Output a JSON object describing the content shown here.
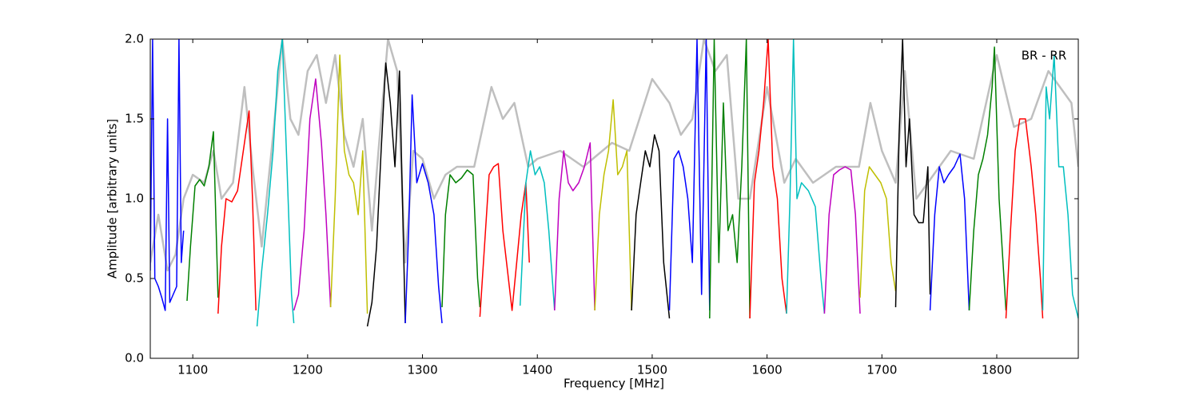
{
  "chart_data": {
    "type": "line",
    "xlabel": "Frequency [MHz]",
    "ylabel": "Amplitude [arbitrary units]",
    "annotation": "BR - RR",
    "xlim": [
      1063,
      1871
    ],
    "ylim": [
      0,
      2
    ],
    "xticks": [
      1100,
      1200,
      1300,
      1400,
      1500,
      1600,
      1700,
      1800
    ],
    "yticks": [
      {
        "value": 0,
        "label": "0.0"
      },
      {
        "value": 0.5,
        "label": "0.5"
      },
      {
        "value": 1,
        "label": "1.0"
      },
      {
        "value": 1.5,
        "label": "1.5"
      },
      {
        "value": 2,
        "label": "2.0"
      }
    ],
    "series": [
      {
        "color": "#bfbfbf",
        "x": [
          1063,
          1070,
          1078,
          1085,
          1092,
          1100,
          1110,
          1118,
          1125,
          1135,
          1145,
          1152,
          1160,
          1170,
          1178,
          1185,
          1192,
          1200,
          1208,
          1216,
          1224,
          1232,
          1240,
          1248,
          1256,
          1264,
          1270,
          1278,
          1285,
          1292,
          1300,
          1310,
          1320,
          1330,
          1345,
          1360,
          1370,
          1380,
          1392,
          1400,
          1420,
          1440,
          1465,
          1480,
          1500,
          1515,
          1525,
          1535,
          1545,
          1555,
          1565,
          1575,
          1585,
          1600,
          1615,
          1625,
          1640,
          1660,
          1680,
          1690,
          1700,
          1712,
          1720,
          1730,
          1740,
          1760,
          1780,
          1800,
          1815,
          1830,
          1845,
          1855,
          1865,
          1871
        ],
        "values": [
          0.6,
          0.9,
          0.55,
          0.65,
          1.0,
          1.15,
          1.1,
          1.3,
          1.0,
          1.1,
          1.7,
          1.2,
          0.7,
          1.4,
          2.0,
          1.5,
          1.4,
          1.8,
          1.9,
          1.6,
          1.9,
          1.4,
          1.2,
          1.5,
          0.8,
          1.5,
          2.0,
          1.8,
          0.6,
          1.3,
          1.25,
          1.0,
          1.15,
          1.2,
          1.2,
          1.7,
          1.5,
          1.6,
          1.2,
          1.25,
          1.3,
          1.2,
          1.35,
          1.3,
          1.75,
          1.6,
          1.4,
          1.5,
          2.0,
          1.8,
          1.9,
          1.0,
          1.0,
          1.7,
          1.1,
          1.25,
          1.1,
          1.2,
          1.2,
          1.6,
          1.3,
          1.1,
          1.8,
          1.0,
          1.1,
          1.3,
          1.25,
          1.9,
          1.45,
          1.5,
          1.8,
          1.7,
          1.6,
          1.2
        ]
      },
      {
        "color": "#0000ff",
        "x": [
          1063,
          1065,
          1067,
          1070,
          1073,
          1076,
          1078,
          1080,
          1083,
          1086,
          1088,
          1090,
          1092
        ],
        "values": [
          0.55,
          2.0,
          0.5,
          0.45,
          0.38,
          0.3,
          1.5,
          0.35,
          0.4,
          0.45,
          2.0,
          0.6,
          0.8
        ]
      },
      {
        "color": "#008000",
        "x": [
          1095,
          1098,
          1102,
          1106,
          1110,
          1114,
          1118,
          1122
        ],
        "values": [
          0.36,
          0.7,
          1.08,
          1.12,
          1.08,
          1.2,
          1.42,
          0.38
        ]
      },
      {
        "color": "#ff0000",
        "x": [
          1122,
          1125,
          1129,
          1134,
          1139,
          1144,
          1149,
          1152,
          1155
        ],
        "values": [
          0.28,
          0.7,
          1.0,
          0.98,
          1.05,
          1.3,
          1.55,
          1.0,
          0.3
        ]
      },
      {
        "color": "#00bfbf",
        "x": [
          1156,
          1160,
          1165,
          1170,
          1174,
          1178,
          1182,
          1186,
          1188
        ],
        "values": [
          0.2,
          0.55,
          0.9,
          1.3,
          1.8,
          2.0,
          1.2,
          0.4,
          0.22
        ]
      },
      {
        "color": "#bf00bf",
        "x": [
          1188,
          1192,
          1197,
          1202,
          1207,
          1212,
          1216,
          1220
        ],
        "values": [
          0.3,
          0.4,
          0.8,
          1.5,
          1.75,
          1.35,
          0.9,
          0.32
        ]
      },
      {
        "color": "#bfbf00",
        "x": [
          1220,
          1224,
          1228,
          1232,
          1236,
          1240,
          1244,
          1248,
          1252
        ],
        "values": [
          0.32,
          1.0,
          1.9,
          1.3,
          1.15,
          1.1,
          0.9,
          1.3,
          0.28
        ]
      },
      {
        "color": "#000000",
        "x": [
          1252,
          1256,
          1260,
          1264,
          1268,
          1272,
          1276,
          1280,
          1285
        ],
        "values": [
          0.2,
          0.35,
          0.7,
          1.3,
          1.85,
          1.6,
          1.2,
          1.8,
          0.22
        ]
      },
      {
        "color": "#0000ff",
        "x": [
          1285,
          1288,
          1291,
          1295,
          1300,
          1305,
          1310,
          1314,
          1317
        ],
        "values": [
          0.22,
          0.8,
          1.65,
          1.1,
          1.22,
          1.1,
          0.9,
          0.45,
          0.22
        ]
      },
      {
        "color": "#008000",
        "x": [
          1317,
          1320,
          1324,
          1329,
          1334,
          1339,
          1344,
          1348,
          1350
        ],
        "values": [
          0.32,
          0.9,
          1.15,
          1.1,
          1.13,
          1.18,
          1.15,
          0.5,
          0.32
        ]
      },
      {
        "color": "#ff0000",
        "x": [
          1350,
          1354,
          1358,
          1362,
          1366,
          1370,
          1374,
          1378,
          1382,
          1386,
          1390,
          1393
        ],
        "values": [
          0.26,
          0.7,
          1.15,
          1.2,
          1.22,
          0.8,
          0.55,
          0.3,
          0.6,
          0.9,
          1.1,
          0.6
        ]
      },
      {
        "color": "#00bfbf",
        "x": [
          1385,
          1390,
          1394,
          1398,
          1402,
          1406,
          1410,
          1415
        ],
        "values": [
          0.33,
          1.1,
          1.3,
          1.15,
          1.2,
          1.1,
          0.8,
          0.3
        ]
      },
      {
        "color": "#bf00bf",
        "x": [
          1415,
          1419,
          1423,
          1427,
          1431,
          1436,
          1441,
          1446,
          1450
        ],
        "values": [
          0.3,
          1.0,
          1.3,
          1.1,
          1.05,
          1.1,
          1.2,
          1.35,
          0.3
        ]
      },
      {
        "color": "#bfbf00",
        "x": [
          1450,
          1454,
          1458,
          1462,
          1466,
          1470,
          1474,
          1478,
          1482
        ],
        "values": [
          0.3,
          0.9,
          1.15,
          1.3,
          1.62,
          1.15,
          1.2,
          1.3,
          0.3
        ]
      },
      {
        "color": "#000000",
        "x": [
          1482,
          1486,
          1490,
          1494,
          1498,
          1502,
          1506,
          1510,
          1515
        ],
        "values": [
          0.3,
          0.9,
          1.1,
          1.3,
          1.2,
          1.4,
          1.3,
          0.6,
          0.25
        ]
      },
      {
        "color": "#0000ff",
        "x": [
          1515,
          1519,
          1523,
          1527,
          1531,
          1535,
          1539,
          1543,
          1547,
          1550
        ],
        "values": [
          0.3,
          1.25,
          1.3,
          1.2,
          1.0,
          0.6,
          2.0,
          0.4,
          2.0,
          0.3
        ]
      },
      {
        "color": "#008000",
        "x": [
          1550,
          1554,
          1558,
          1562,
          1566,
          1570,
          1574,
          1578,
          1582,
          1585
        ],
        "values": [
          0.25,
          2.0,
          0.6,
          1.6,
          0.8,
          0.9,
          0.6,
          1.2,
          2.0,
          0.25
        ]
      },
      {
        "color": "#ff0000",
        "x": [
          1585,
          1589,
          1593,
          1597,
          1601,
          1605,
          1609,
          1613,
          1617
        ],
        "values": [
          0.25,
          1.1,
          1.3,
          1.6,
          2.0,
          1.2,
          1.0,
          0.5,
          0.28
        ]
      },
      {
        "color": "#00bfbf",
        "x": [
          1617,
          1620,
          1623,
          1626,
          1630,
          1636,
          1642,
          1647,
          1650
        ],
        "values": [
          0.28,
          1.0,
          2.0,
          1.0,
          1.1,
          1.05,
          0.95,
          0.5,
          0.28
        ]
      },
      {
        "color": "#bf00bf",
        "x": [
          1650,
          1654,
          1658,
          1663,
          1668,
          1673,
          1677,
          1681
        ],
        "values": [
          0.28,
          0.9,
          1.15,
          1.18,
          1.2,
          1.18,
          0.9,
          0.28
        ]
      },
      {
        "color": "#bfbf00",
        "x": [
          1681,
          1685,
          1689,
          1694,
          1699,
          1704,
          1708,
          1712
        ],
        "values": [
          0.38,
          1.05,
          1.2,
          1.15,
          1.1,
          1.0,
          0.6,
          0.42
        ]
      },
      {
        "color": "#000000",
        "x": [
          1712,
          1715,
          1718,
          1721,
          1724,
          1728,
          1732,
          1736,
          1740,
          1742
        ],
        "values": [
          0.32,
          1.4,
          2.0,
          1.2,
          1.5,
          0.9,
          0.85,
          0.85,
          1.2,
          0.4
        ]
      },
      {
        "color": "#0000ff",
        "x": [
          1742,
          1746,
          1750,
          1754,
          1758,
          1763,
          1768,
          1772,
          1776
        ],
        "values": [
          0.3,
          0.9,
          1.2,
          1.1,
          1.15,
          1.2,
          1.28,
          1.0,
          0.3
        ]
      },
      {
        "color": "#008000",
        "x": [
          1776,
          1780,
          1784,
          1788,
          1792,
          1796,
          1798,
          1802,
          1808
        ],
        "values": [
          0.3,
          0.8,
          1.15,
          1.25,
          1.4,
          1.7,
          1.95,
          1.0,
          0.3
        ]
      },
      {
        "color": "#ff0000",
        "x": [
          1808,
          1812,
          1816,
          1820,
          1825,
          1830,
          1834,
          1838,
          1840
        ],
        "values": [
          0.25,
          0.8,
          1.3,
          1.5,
          1.5,
          1.2,
          0.9,
          0.5,
          0.25
        ]
      },
      {
        "color": "#00bfbf",
        "x": [
          1840,
          1843,
          1846,
          1850,
          1854,
          1858,
          1862,
          1866,
          1871
        ],
        "values": [
          0.3,
          1.7,
          1.5,
          1.9,
          1.2,
          1.2,
          0.9,
          0.4,
          0.25
        ]
      }
    ]
  }
}
